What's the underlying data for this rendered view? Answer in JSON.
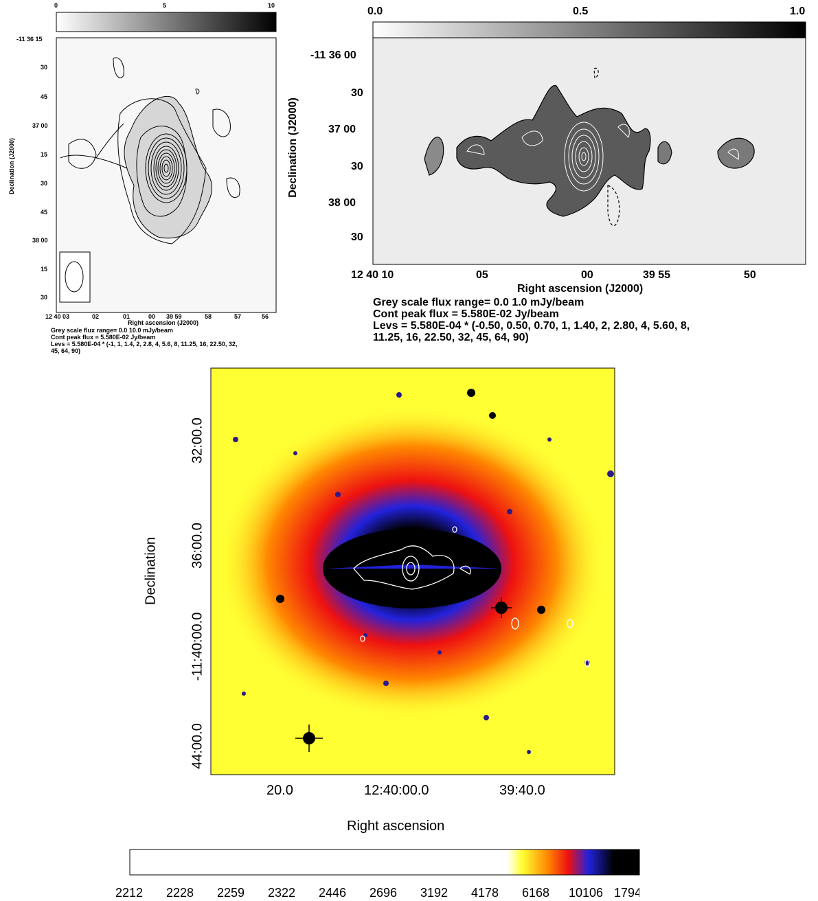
{
  "panel_a": {
    "colorbar_ticks": [
      "0",
      "5",
      "10"
    ],
    "dec_ticks": [
      "-11 36 15",
      "30",
      "45",
      "37 00",
      "15",
      "30",
      "45",
      "38 00",
      "15",
      "30"
    ],
    "ra_ticks": [
      "12 40 03",
      "02",
      "01",
      "00",
      "39 59",
      "58",
      "57",
      "56"
    ],
    "xlabel": "Right ascension (J2000)",
    "ylabel": "Declination (J2000)",
    "caption": [
      "Grey scale flux range= 0.0 10.0 mJy/beam",
      "Cont peak flux =  5.580E-02 Jy/beam",
      "Levs = 5.580E-04 * (-1, 1, 1.4, 2, 2.8, 4, 5.6, 8, 11.25, 16, 22.50, 32,",
      "45, 64, 90)"
    ]
  },
  "panel_b": {
    "colorbar_ticks": [
      "0.0",
      "0.5",
      "1.0"
    ],
    "dec_ticks": [
      "-11 36 00",
      "30",
      "37 00",
      "30",
      "38 00",
      "30"
    ],
    "ra_ticks": [
      "12 40 10",
      "05",
      "00",
      "39 55",
      "50"
    ],
    "xlabel": "Right ascension (J2000)",
    "ylabel": "Declination (J2000)",
    "caption": [
      "Grey scale flux range= 0.0 1.0 mJy/beam",
      "Cont peak flux =  5.580E-02 Jy/beam",
      "Levs = 5.580E-04 * (-0.50, 0.50, 0.70, 1, 1.40, 2, 2.80, 4, 5.60, 8,",
      "11.25, 16, 22.50, 32, 45, 64, 90)"
    ]
  },
  "panel_c": {
    "dec_ticks": [
      "32:00.0",
      "36:00.0",
      "-11:40:00.0",
      "44:00.0"
    ],
    "ra_ticks": [
      "20.0",
      "12:40:00.0",
      "39:40.0"
    ],
    "xlabel": "Right ascension",
    "ylabel": "Declination",
    "colorbar_ticks": [
      "2212",
      "2228",
      "2259",
      "2322",
      "2446",
      "2696",
      "3192",
      "4178",
      "6168",
      "10106",
      "1794"
    ],
    "colors": {
      "background": "#ffff33",
      "orange": "#ff8800",
      "red": "#ee1111",
      "blue": "#2222dd",
      "core": "#000000"
    }
  }
}
